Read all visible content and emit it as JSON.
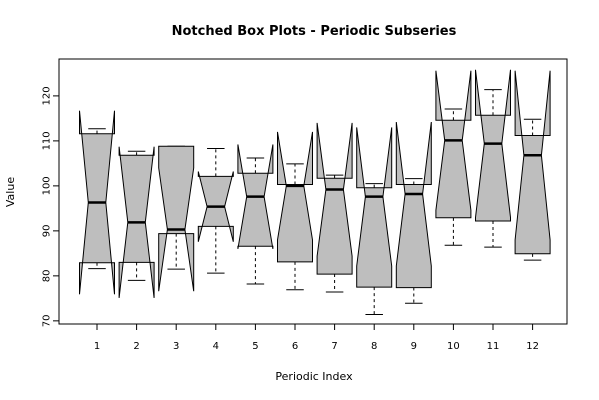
{
  "chart_data": {
    "type": "notched-boxplot",
    "title": "Notched Box Plots - Periodic Subseries",
    "xlabel": "Periodic Index",
    "ylabel": "Value",
    "x_ticks": [
      "1",
      "2",
      "3",
      "4",
      "5",
      "6",
      "7",
      "8",
      "9",
      "10",
      "11",
      "12"
    ],
    "y_ticks": [
      70,
      80,
      90,
      100,
      110,
      120
    ],
    "ylim": [
      69.3,
      128.2
    ],
    "box_fill": "#bebebe",
    "boxes": [
      {
        "label": "1",
        "lower_whisker": 81.6,
        "q1": 82.9,
        "median": 96.3,
        "q3": 111.6,
        "upper_whisker": 112.7,
        "notch_low": 75.9,
        "notch_high": 116.7
      },
      {
        "label": "2",
        "lower_whisker": 79.0,
        "q1": 83.0,
        "median": 91.9,
        "q3": 106.8,
        "upper_whisker": 107.7,
        "notch_low": 75.1,
        "notch_high": 108.7
      },
      {
        "label": "3",
        "lower_whisker": 81.5,
        "q1": 89.4,
        "median": 90.3,
        "q3": 108.8,
        "upper_whisker": 108.8,
        "notch_low": 76.6,
        "notch_high": 104.0
      },
      {
        "label": "4",
        "lower_whisker": 80.6,
        "q1": 91.0,
        "median": 95.4,
        "q3": 102.1,
        "upper_whisker": 108.3,
        "notch_low": 87.6,
        "notch_high": 103.2
      },
      {
        "label": "5",
        "lower_whisker": 78.2,
        "q1": 86.6,
        "median": 97.6,
        "q3": 102.8,
        "upper_whisker": 106.2,
        "notch_low": 86.0,
        "notch_high": 109.2
      },
      {
        "label": "6",
        "lower_whisker": 76.9,
        "q1": 83.1,
        "median": 100.0,
        "q3": 100.3,
        "upper_whisker": 104.9,
        "notch_low": 88.0,
        "notch_high": 112.0
      },
      {
        "label": "7",
        "lower_whisker": 76.4,
        "q1": 80.4,
        "median": 99.2,
        "q3": 101.7,
        "upper_whisker": 102.4,
        "notch_low": 84.4,
        "notch_high": 114.0
      },
      {
        "label": "8",
        "lower_whisker": 71.4,
        "q1": 77.5,
        "median": 97.6,
        "q3": 99.6,
        "upper_whisker": 100.5,
        "notch_low": 82.2,
        "notch_high": 113.0
      },
      {
        "label": "9",
        "lower_whisker": 73.9,
        "q1": 77.4,
        "median": 98.2,
        "q3": 100.3,
        "upper_whisker": 101.6,
        "notch_low": 82.2,
        "notch_high": 114.2
      },
      {
        "label": "10",
        "lower_whisker": 86.8,
        "q1": 92.9,
        "median": 110.1,
        "q3": 114.6,
        "upper_whisker": 117.1,
        "notch_low": 94.6,
        "notch_high": 125.6
      },
      {
        "label": "11",
        "lower_whisker": 86.4,
        "q1": 92.2,
        "median": 109.4,
        "q3": 115.7,
        "upper_whisker": 121.4,
        "notch_low": 93.0,
        "notch_high": 125.8
      },
      {
        "label": "12",
        "lower_whisker": 83.5,
        "q1": 84.9,
        "median": 106.8,
        "q3": 111.2,
        "upper_whisker": 114.8,
        "notch_low": 88.0,
        "notch_high": 125.6
      }
    ]
  }
}
